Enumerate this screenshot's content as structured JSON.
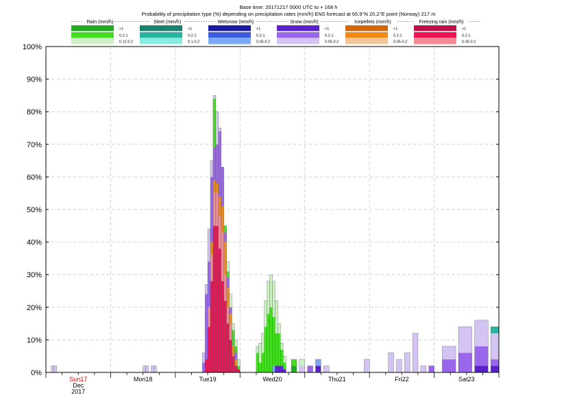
{
  "header": {
    "line1": "Base time: 20171217 0000 UTC to + 168 h",
    "line2": "Probability of precipitation type (%) depending on precipitation rates (mm/h) ENS forecast at 65.9°N  20.2°E point (Norway) 217 m"
  },
  "legend": [
    {
      "title": "Rain (mm/h)",
      "levels": [
        ">1",
        "0.2-1",
        "0.12-0.2"
      ],
      "colors": [
        "#22aa22",
        "#44dd22",
        "#ccf0c4"
      ]
    },
    {
      "title": "Sleet (mm/h)",
      "levels": [
        ">1",
        "0.2-1",
        "0.1-0.2"
      ],
      "colors": [
        "#1a8070",
        "#28b4a0",
        "#88ece0"
      ]
    },
    {
      "title": "Wetsnow (mm/h)",
      "levels": [
        ">1",
        "0.2-1",
        "0.05-0.2"
      ],
      "colors": [
        "#1c1ca0",
        "#3a5ae0",
        "#7aa8f4"
      ]
    },
    {
      "title": "Snow (mm/h)",
      "levels": [
        ">1",
        "0.2-1",
        "0.05-0.2"
      ],
      "colors": [
        "#5a22c8",
        "#9a66ec",
        "#d4c4f4"
      ]
    },
    {
      "title": "Icepellets (mm/h)",
      "levels": [
        ">1",
        "0.2-1",
        "0.05-0.2"
      ],
      "colors": [
        "#d06810",
        "#f08a14",
        "#f2c496"
      ]
    },
    {
      "title": "Freezing rain (mm/h)",
      "levels": [
        ">1",
        "0.2-1",
        "0.05-0.2"
      ],
      "colors": [
        "#c0104a",
        "#f01456",
        "#f48a92"
      ]
    }
  ],
  "chart_data": {
    "type": "bar",
    "stacked": true,
    "x_unit": "hours after base time",
    "x_range": [
      0,
      168
    ],
    "y_range": [
      0,
      100
    ],
    "y_ticks": [
      "0%",
      "10%",
      "20%",
      "30%",
      "40%",
      "50%",
      "60%",
      "70%",
      "80%",
      "90%",
      "100%"
    ],
    "x_ticks": [
      {
        "hour": 12,
        "label": "Sun17",
        "sub1": "Dec",
        "sub2": "2017",
        "color": "#dd0000"
      },
      {
        "hour": 36,
        "label": "Mon18"
      },
      {
        "hour": 60,
        "label": "Tue19"
      },
      {
        "hour": 84,
        "label": "Wed20"
      },
      {
        "hour": 108,
        "label": "Thu21"
      },
      {
        "hour": 132,
        "label": "Fri22"
      },
      {
        "hour": 156,
        "label": "Sat23"
      }
    ],
    "grid": true,
    "day_boundaries": [
      24,
      48,
      72,
      96,
      120,
      144
    ],
    "bars": [
      {
        "t": 2,
        "w": 1,
        "segs": [
          [
            "snow_light",
            2
          ]
        ]
      },
      {
        "t": 3,
        "w": 1,
        "segs": [
          [
            "snow_light",
            2
          ]
        ]
      },
      {
        "t": 36,
        "w": 1,
        "segs": [
          [
            "snow_light",
            2
          ]
        ]
      },
      {
        "t": 37,
        "w": 1,
        "segs": [
          [
            "snow_light",
            2
          ]
        ]
      },
      {
        "t": 39,
        "w": 1,
        "segs": [
          [
            "snow_light",
            2
          ]
        ]
      },
      {
        "t": 40,
        "w": 1,
        "segs": [
          [
            "snow_light",
            2
          ]
        ]
      },
      {
        "t": 58,
        "w": 1,
        "segs": [
          [
            "snow_mod",
            3
          ],
          [
            "snow_light",
            3
          ]
        ]
      },
      {
        "t": 59,
        "w": 1,
        "segs": [
          [
            "fz_mod",
            4
          ],
          [
            "snow_mod",
            20
          ],
          [
            "snow_light",
            3
          ]
        ]
      },
      {
        "t": 60,
        "w": 1,
        "segs": [
          [
            "fz_mod",
            14
          ],
          [
            "fz_light",
            6
          ],
          [
            "snow_mod",
            14
          ],
          [
            "snow_light",
            10
          ]
        ]
      },
      {
        "t": 61,
        "w": 1,
        "segs": [
          [
            "fz_mod",
            28
          ],
          [
            "fz_light",
            8
          ],
          [
            "ice_mod",
            4
          ],
          [
            "snow_mod",
            20
          ],
          [
            "snow_light",
            5
          ]
        ]
      },
      {
        "t": 62,
        "w": 1,
        "segs": [
          [
            "fz_mod",
            45
          ],
          [
            "fz_light",
            10
          ],
          [
            "ice_mod",
            4
          ],
          [
            "snow_mod",
            10
          ],
          [
            "rain_mod",
            15
          ],
          [
            "snow_light",
            1
          ]
        ]
      },
      {
        "t": 63,
        "w": 1,
        "segs": [
          [
            "fz_mod",
            45
          ],
          [
            "fz_light",
            10
          ],
          [
            "ice_mod",
            3
          ],
          [
            "snow_mod",
            12
          ],
          [
            "snow_light",
            10
          ]
        ]
      },
      {
        "t": 64,
        "w": 1,
        "segs": [
          [
            "fz_mod",
            38
          ],
          [
            "fz_light",
            10
          ],
          [
            "ice_mod",
            6
          ],
          [
            "snow_mod",
            20
          ],
          [
            "snow_light",
            1
          ]
        ]
      },
      {
        "t": 65,
        "w": 1,
        "segs": [
          [
            "fz_mod",
            28
          ],
          [
            "fz_light",
            15
          ],
          [
            "ice_mod",
            8
          ],
          [
            "snow_mod",
            12
          ]
        ]
      },
      {
        "t": 66,
        "w": 1,
        "segs": [
          [
            "fz_mod",
            22
          ],
          [
            "fz_light",
            8
          ],
          [
            "ice_mod",
            10
          ],
          [
            "snow_mod",
            3
          ],
          [
            "rain_mod",
            2
          ]
        ]
      },
      {
        "t": 67,
        "w": 1,
        "segs": [
          [
            "fz_mod",
            15
          ],
          [
            "fz_light",
            5
          ],
          [
            "ice_mod",
            6
          ],
          [
            "snow_mod",
            3
          ],
          [
            "rain_mod",
            2
          ],
          [
            "rain_light",
            3
          ]
        ]
      },
      {
        "t": 68,
        "w": 1,
        "segs": [
          [
            "fz_mod",
            10
          ],
          [
            "fz_light",
            5
          ],
          [
            "ice_mod",
            3
          ],
          [
            "snow_mod",
            2
          ],
          [
            "rain_light",
            4
          ]
        ]
      },
      {
        "t": 69,
        "w": 1,
        "segs": [
          [
            "fz_mod",
            5
          ],
          [
            "ice_mod",
            3
          ],
          [
            "rain_mod",
            5
          ],
          [
            "rain_light",
            2
          ]
        ]
      },
      {
        "t": 70,
        "w": 1,
        "segs": [
          [
            "fz_mod",
            2
          ],
          [
            "ice_mod",
            2
          ],
          [
            "snow_mod",
            2
          ],
          [
            "rain_mod",
            2
          ],
          [
            "rain_light",
            2
          ]
        ]
      },
      {
        "t": 71,
        "w": 1,
        "segs": [
          [
            "fz_mod",
            1
          ],
          [
            "rain_mod",
            1
          ],
          [
            "rain_light",
            2
          ]
        ]
      },
      {
        "t": 78,
        "w": 1,
        "segs": [
          [
            "rain_mod",
            6
          ],
          [
            "rain_light",
            2
          ]
        ]
      },
      {
        "t": 79,
        "w": 1,
        "segs": [
          [
            "rain_mod",
            3
          ],
          [
            "rain_light",
            6
          ]
        ]
      },
      {
        "t": 80,
        "w": 1,
        "segs": [
          [
            "rain_mod",
            6
          ],
          [
            "rain_light",
            6
          ]
        ]
      },
      {
        "t": 81,
        "w": 1,
        "segs": [
          [
            "rain_mod",
            14
          ],
          [
            "rain_light",
            8
          ]
        ]
      },
      {
        "t": 82,
        "w": 1,
        "segs": [
          [
            "rain_mod",
            18
          ],
          [
            "rain_light",
            10
          ]
        ]
      },
      {
        "t": 83,
        "w": 1,
        "segs": [
          [
            "rain_mod",
            20
          ],
          [
            "rain_light",
            10
          ]
        ]
      },
      {
        "t": 84,
        "w": 1,
        "segs": [
          [
            "wet_light",
            2
          ],
          [
            "rain_mod",
            15
          ],
          [
            "rain_light",
            11
          ]
        ]
      },
      {
        "t": 85,
        "w": 1,
        "segs": [
          [
            "snow_heavy",
            2
          ],
          [
            "rain_mod",
            10
          ],
          [
            "rain_light",
            10
          ]
        ]
      },
      {
        "t": 86,
        "w": 1,
        "segs": [
          [
            "snow_heavy",
            2
          ],
          [
            "rain_mod",
            10
          ],
          [
            "rain_light",
            3
          ]
        ]
      },
      {
        "t": 87,
        "w": 1,
        "segs": [
          [
            "snow_heavy",
            2
          ],
          [
            "rain_mod",
            5
          ],
          [
            "rain_light",
            2
          ]
        ]
      },
      {
        "t": 88,
        "w": 1,
        "segs": [
          [
            "snow_heavy",
            1
          ],
          [
            "rain_mod",
            2
          ],
          [
            "rain_light",
            2
          ]
        ]
      },
      {
        "t": 91,
        "w": 2,
        "segs": [
          [
            "rain_heavy",
            2
          ],
          [
            "rain_mod",
            2
          ]
        ]
      },
      {
        "t": 94,
        "w": 2,
        "segs": [
          [
            "snow_light",
            2
          ],
          [
            "rain_light",
            2
          ]
        ]
      },
      {
        "t": 97,
        "w": 2,
        "segs": [
          [
            "snow_mod",
            2
          ]
        ]
      },
      {
        "t": 100,
        "w": 2,
        "segs": [
          [
            "snow_heavy",
            2
          ],
          [
            "wet_light",
            2
          ]
        ]
      },
      {
        "t": 103,
        "w": 2,
        "segs": [
          [
            "snow_light",
            2
          ]
        ]
      },
      {
        "t": 118,
        "w": 2,
        "segs": [
          [
            "snow_light",
            4
          ]
        ]
      },
      {
        "t": 127,
        "w": 2,
        "segs": [
          [
            "snow_light",
            6
          ]
        ]
      },
      {
        "t": 130,
        "w": 2,
        "segs": [
          [
            "snow_light",
            4
          ]
        ]
      },
      {
        "t": 133,
        "w": 2,
        "segs": [
          [
            "snow_light",
            6
          ]
        ]
      },
      {
        "t": 136,
        "w": 2,
        "segs": [
          [
            "snow_light",
            12
          ]
        ]
      },
      {
        "t": 139,
        "w": 2,
        "segs": [
          [
            "snow_light",
            2
          ]
        ]
      },
      {
        "t": 142,
        "w": 2,
        "segs": [
          [
            "snow_mod",
            2
          ]
        ]
      },
      {
        "t": 147,
        "w": 5,
        "segs": [
          [
            "snow_mod",
            4
          ],
          [
            "snow_light",
            4
          ]
        ]
      },
      {
        "t": 153,
        "w": 5,
        "segs": [
          [
            "snow_mod",
            6
          ],
          [
            "snow_light",
            8
          ]
        ]
      },
      {
        "t": 159,
        "w": 5,
        "segs": [
          [
            "snow_heavy",
            2
          ],
          [
            "snow_mod",
            6
          ],
          [
            "snow_light",
            8
          ]
        ]
      },
      {
        "t": 165,
        "w": 3,
        "segs": [
          [
            "snow_heavy",
            2
          ],
          [
            "snow_mod",
            2
          ],
          [
            "snow_light",
            8
          ],
          [
            "sleet_mod",
            2
          ]
        ]
      }
    ],
    "category_colors": {
      "rain_heavy": "#22aa22",
      "rain_mod": "#44dd22",
      "rain_light": "#ccf0c4",
      "sleet_heavy": "#1a8070",
      "sleet_mod": "#28b4a0",
      "sleet_light": "#88ece0",
      "wet_heavy": "#1c1ca0",
      "wet_mod": "#3a5ae0",
      "wet_light": "#7aa8f4",
      "snow_heavy": "#5a22c8",
      "snow_mod": "#9a66ec",
      "snow_light": "#d4c4f4",
      "ice_heavy": "#d06810",
      "ice_mod": "#f08a14",
      "ice_light": "#f2c496",
      "fz_heavy": "#c0104a",
      "fz_mod": "#f01456",
      "fz_light": "#f48a92"
    }
  }
}
